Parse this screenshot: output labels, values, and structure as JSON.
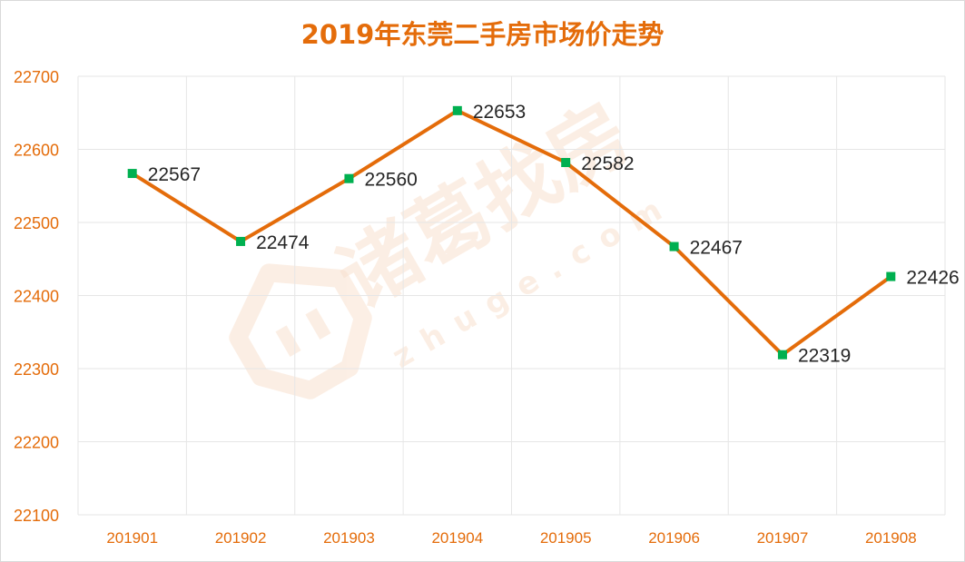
{
  "chart_data": {
    "type": "line",
    "title": "2019年东莞二手房市场价走势",
    "xlabel": "",
    "ylabel": "",
    "categories": [
      "201901",
      "201902",
      "201903",
      "201904",
      "201905",
      "201906",
      "201907",
      "201908"
    ],
    "series": [
      {
        "values": [
          22567,
          22474,
          22560,
          22653,
          22582,
          22467,
          22319,
          22426
        ]
      }
    ],
    "ylim": [
      22100,
      22700
    ],
    "yticks": [
      22700,
      22600,
      22500,
      22400,
      22300,
      22200,
      22100
    ],
    "grid": true,
    "legend": "none",
    "data_labels": true
  },
  "watermark": {
    "brand": "诸葛找房",
    "domain": "zhuge.com"
  },
  "colors": {
    "line": "#E46C0A",
    "marker": "#00B050",
    "title": "#E46C0A",
    "tick_labels": "#E46C0A",
    "data_labels": "#262626",
    "grid": "#e6e6e6",
    "watermark": "#F9E1CF"
  }
}
